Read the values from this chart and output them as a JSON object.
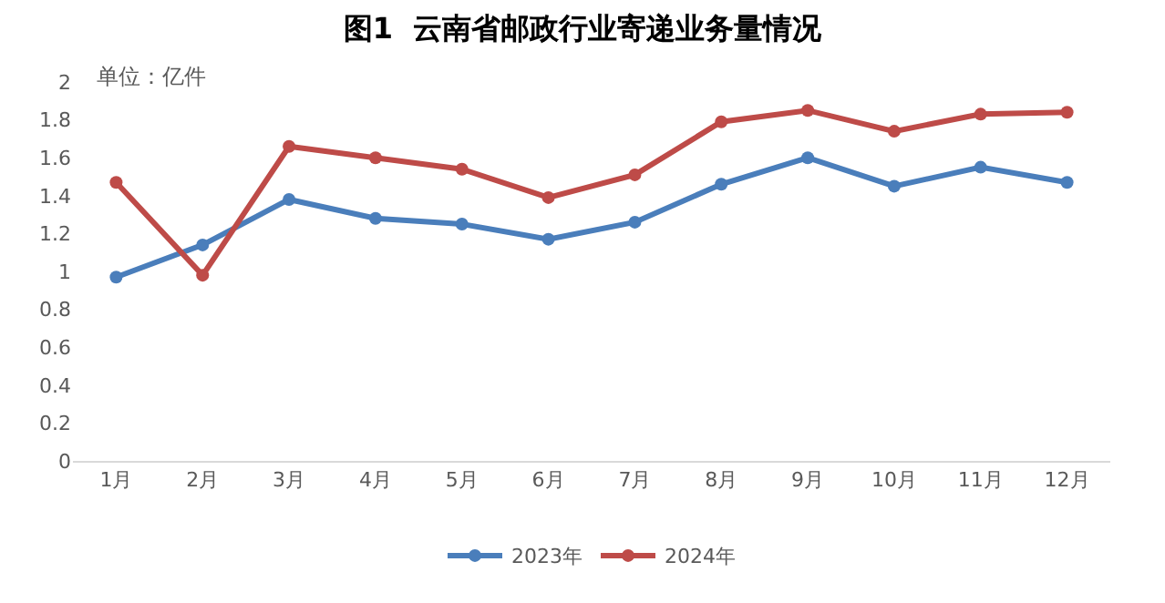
{
  "chart_data": {
    "type": "line",
    "title": "图1  云南省邮政行业寄递业务量情况",
    "annotations": [
      "单位：亿件"
    ],
    "categories": [
      "1月",
      "2月",
      "3月",
      "4月",
      "5月",
      "6月",
      "7月",
      "8月",
      "9月",
      "10月",
      "11月",
      "12月"
    ],
    "series": [
      {
        "name": "2023年",
        "color": "#4a7ebb",
        "values": [
          0.97,
          1.14,
          1.38,
          1.28,
          1.25,
          1.17,
          1.26,
          1.46,
          1.6,
          1.45,
          1.55,
          1.47
        ]
      },
      {
        "name": "2024年",
        "color": "#be4b48",
        "values": [
          1.47,
          0.98,
          1.66,
          1.6,
          1.54,
          1.39,
          1.51,
          1.79,
          1.85,
          1.74,
          1.83,
          1.84
        ]
      }
    ],
    "ylim": [
      0,
      2
    ],
    "yticks": [
      0,
      0.2,
      0.4,
      0.6,
      0.8,
      1,
      1.2,
      1.4,
      1.6,
      1.8,
      2
    ],
    "legend": "bottom",
    "marker": "circle",
    "line_style": "solid"
  }
}
